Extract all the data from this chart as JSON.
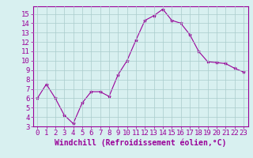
{
  "x": [
    0,
    1,
    2,
    3,
    4,
    5,
    6,
    7,
    8,
    9,
    10,
    11,
    12,
    13,
    14,
    15,
    16,
    17,
    18,
    19,
    20,
    21,
    22,
    23
  ],
  "y": [
    6.0,
    7.5,
    6.0,
    4.2,
    3.3,
    5.5,
    6.7,
    6.7,
    6.2,
    8.5,
    10.0,
    12.2,
    14.3,
    14.8,
    15.5,
    14.3,
    14.0,
    12.8,
    11.0,
    9.9,
    9.8,
    9.7,
    9.2,
    8.8
  ],
  "line_color": "#990099",
  "marker": "*",
  "marker_size": 3,
  "bg_color": "#d8f0f0",
  "grid_color": "#aacccc",
  "xlabel": "Windchill (Refroidissement éolien,°C)",
  "xlim": [
    -0.5,
    23.5
  ],
  "ylim": [
    3,
    15.8
  ],
  "yticks": [
    3,
    4,
    5,
    6,
    7,
    8,
    9,
    10,
    11,
    12,
    13,
    14,
    15
  ],
  "xticks": [
    0,
    1,
    2,
    3,
    4,
    5,
    6,
    7,
    8,
    9,
    10,
    11,
    12,
    13,
    14,
    15,
    16,
    17,
    18,
    19,
    20,
    21,
    22,
    23
  ],
  "tick_color": "#990099",
  "label_color": "#990099",
  "spine_color": "#990099",
  "xlabel_fontsize": 7,
  "tick_fontsize": 6.5
}
